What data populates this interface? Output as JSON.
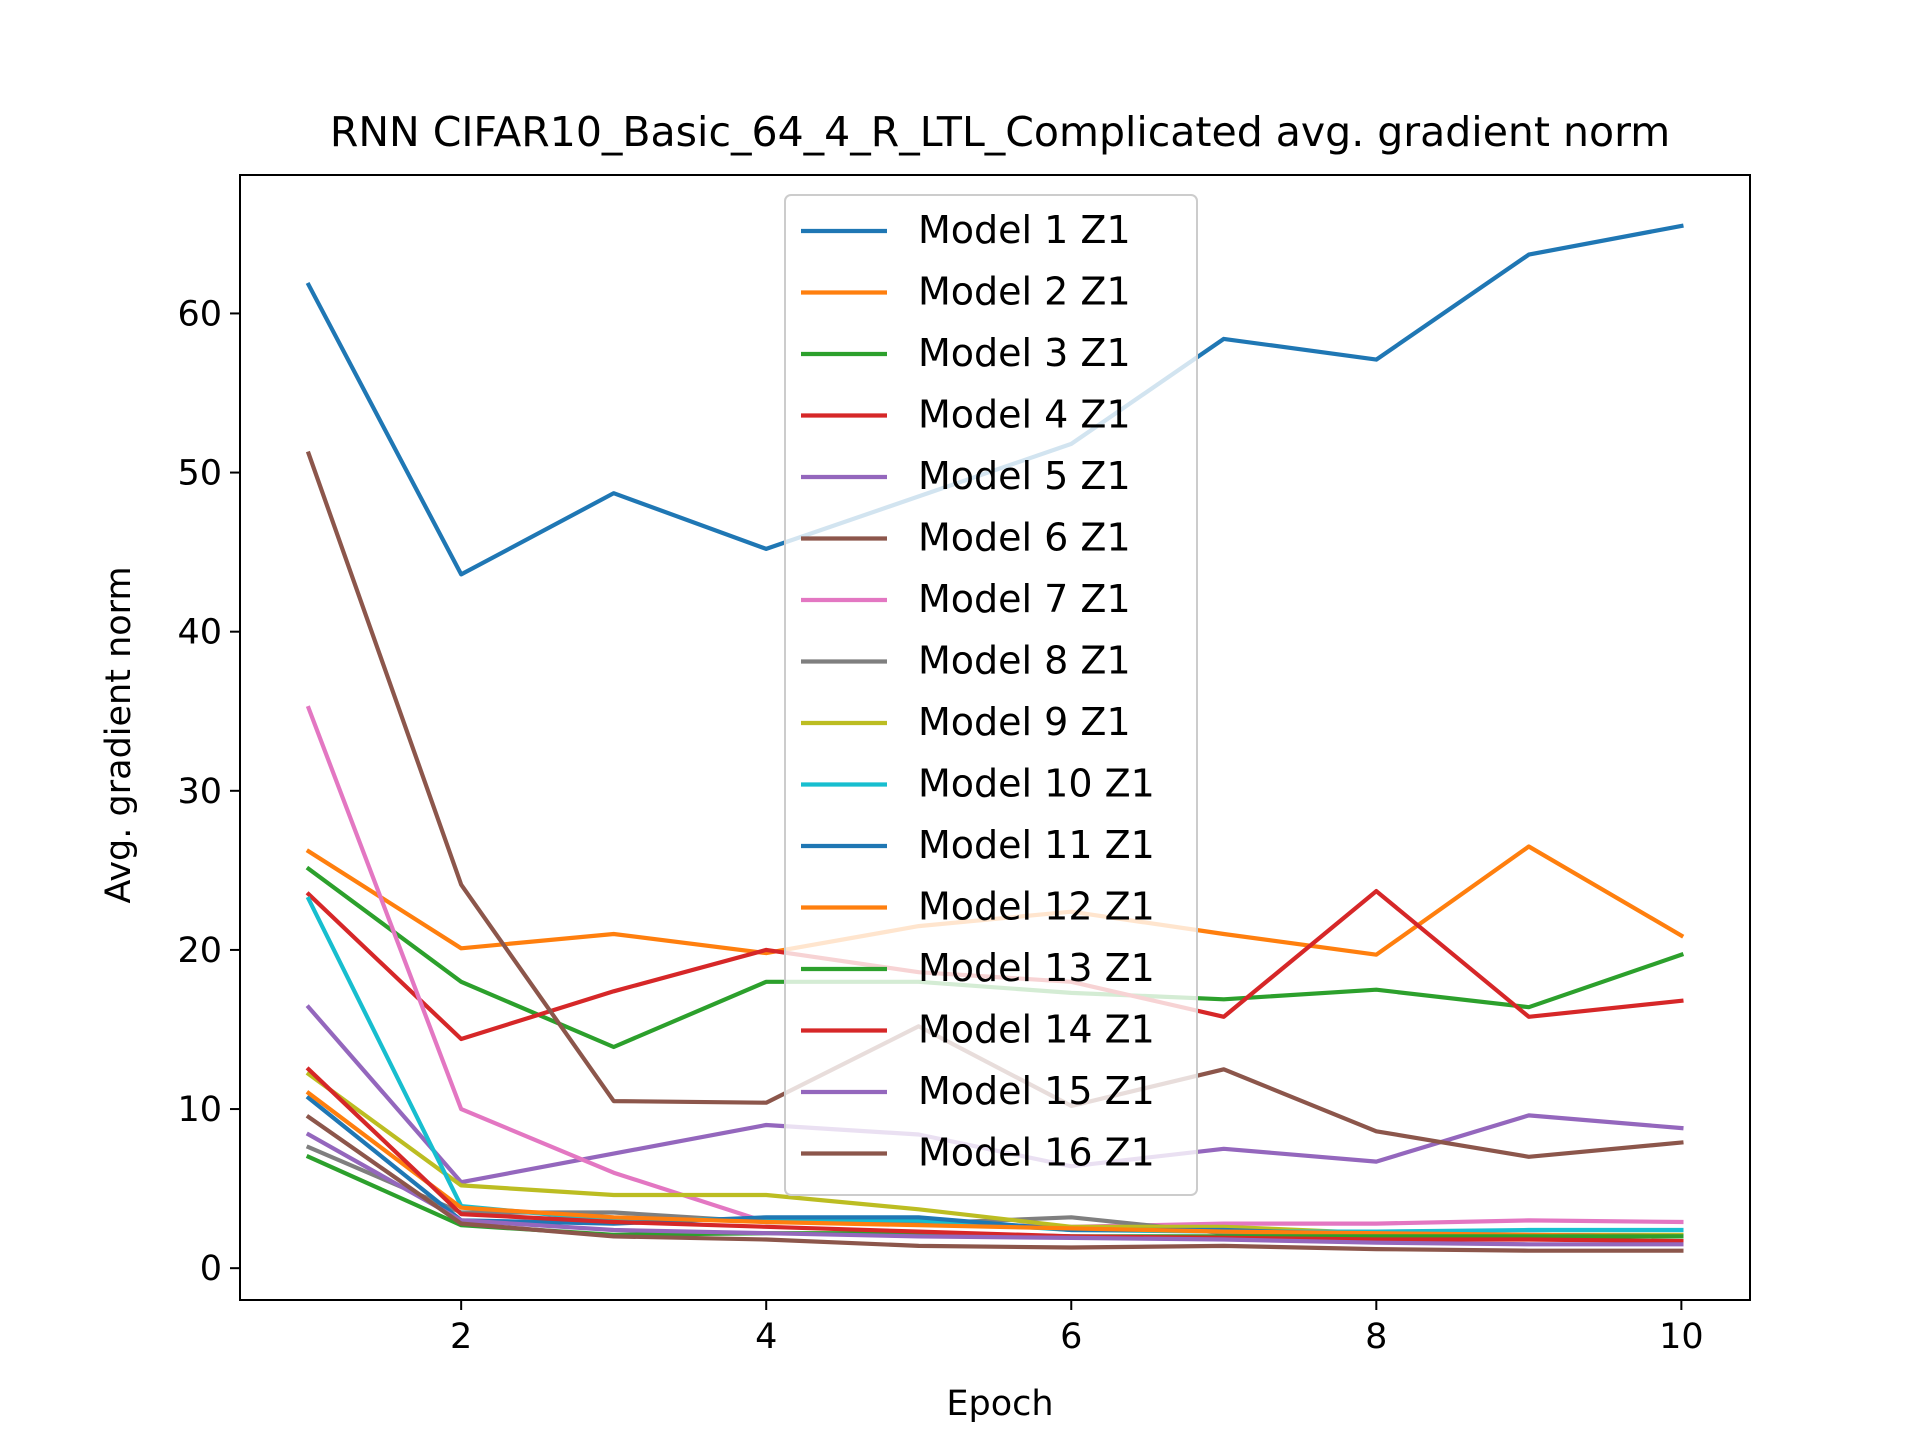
{
  "chart_data": {
    "type": "line",
    "title": "RNN CIFAR10_Basic_64_4_R_LTL_Complicated avg. gradient norm",
    "xlabel": "Epoch",
    "ylabel": "Avg. gradient norm",
    "xlim": [
      0.55,
      10.45
    ],
    "ylim": [
      -2.0,
      68.7
    ],
    "xticks": [
      2,
      4,
      6,
      8,
      10
    ],
    "yticks": [
      0,
      10,
      20,
      30,
      40,
      50,
      60
    ],
    "legend": "upper center",
    "grid": false,
    "x": [
      1,
      2,
      3,
      4,
      5,
      6,
      7,
      8,
      9,
      10
    ],
    "series": [
      {
        "name": "Model 1 Z1",
        "color": "#1f77b4",
        "values": [
          61.8,
          43.6,
          48.7,
          45.2,
          48.5,
          51.8,
          58.4,
          57.1,
          63.7,
          65.5
        ]
      },
      {
        "name": "Model 2 Z1",
        "color": "#ff7f0e",
        "values": [
          26.2,
          20.1,
          21.0,
          19.8,
          21.5,
          22.4,
          21.0,
          19.7,
          26.5,
          20.9
        ]
      },
      {
        "name": "Model 3 Z1",
        "color": "#2ca02c",
        "values": [
          25.1,
          18.0,
          13.9,
          18.0,
          18.0,
          17.3,
          16.9,
          17.5,
          16.4,
          19.7
        ]
      },
      {
        "name": "Model 4 Z1",
        "color": "#d62728",
        "values": [
          23.5,
          14.4,
          17.4,
          20.0,
          18.6,
          18.0,
          15.8,
          23.7,
          15.8,
          16.8
        ]
      },
      {
        "name": "Model 5 Z1",
        "color": "#9467bd",
        "values": [
          16.4,
          5.4,
          7.2,
          9.0,
          8.4,
          6.4,
          7.5,
          6.7,
          9.6,
          8.8
        ]
      },
      {
        "name": "Model 6 Z1",
        "color": "#8c564b",
        "values": [
          51.2,
          24.1,
          10.5,
          10.4,
          15.2,
          10.2,
          12.5,
          8.6,
          7.0,
          7.9
        ]
      },
      {
        "name": "Model 7 Z1",
        "color": "#e377c2",
        "values": [
          35.2,
          10.0,
          6.0,
          2.9,
          2.8,
          2.6,
          2.8,
          2.8,
          3.0,
          2.9
        ]
      },
      {
        "name": "Model 8 Z1",
        "color": "#7f7f7f",
        "values": [
          7.6,
          3.5,
          3.5,
          2.9,
          2.8,
          3.2,
          2.2,
          2.1,
          2.0,
          2.0
        ]
      },
      {
        "name": "Model 9 Z1",
        "color": "#bcbd22",
        "values": [
          12.2,
          5.2,
          4.6,
          4.6,
          3.7,
          2.6,
          2.6,
          2.2,
          2.1,
          2.1
        ]
      },
      {
        "name": "Model 10 Z1",
        "color": "#17becf",
        "values": [
          23.2,
          3.9,
          3.0,
          3.1,
          3.0,
          2.4,
          2.3,
          2.3,
          2.4,
          2.4
        ]
      },
      {
        "name": "Model 11 Z1",
        "color": "#1f77b4",
        "values": [
          10.7,
          3.0,
          2.8,
          3.2,
          3.2,
          2.4,
          2.4,
          2.1,
          2.1,
          2.0
        ]
      },
      {
        "name": "Model 12 Z1",
        "color": "#ff7f0e",
        "values": [
          11.0,
          3.8,
          3.2,
          2.9,
          2.7,
          2.5,
          2.3,
          2.2,
          2.1,
          2.0
        ]
      },
      {
        "name": "Model 13 Z1",
        "color": "#2ca02c",
        "values": [
          7.0,
          2.7,
          2.1,
          2.2,
          2.2,
          2.0,
          2.0,
          2.0,
          2.0,
          2.0
        ]
      },
      {
        "name": "Model 14 Z1",
        "color": "#d62728",
        "values": [
          12.5,
          3.4,
          2.9,
          2.6,
          2.3,
          2.0,
          1.9,
          1.8,
          1.8,
          1.7
        ]
      },
      {
        "name": "Model 15 Z1",
        "color": "#9467bd",
        "values": [
          8.4,
          3.0,
          2.4,
          2.2,
          2.0,
          1.9,
          1.8,
          1.6,
          1.5,
          1.5
        ]
      },
      {
        "name": "Model 16 Z1",
        "color": "#8c564b",
        "values": [
          9.5,
          2.8,
          2.0,
          1.8,
          1.4,
          1.3,
          1.4,
          1.2,
          1.1,
          1.1
        ]
      }
    ]
  }
}
